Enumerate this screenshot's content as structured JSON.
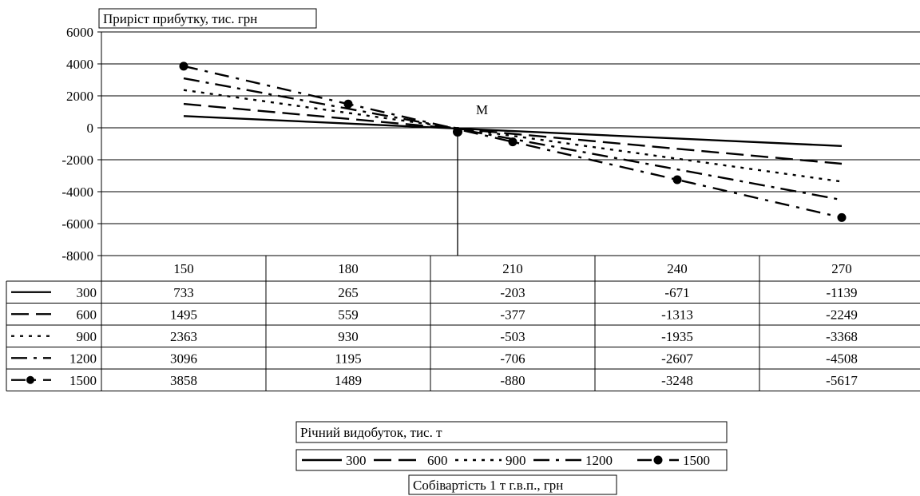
{
  "chart_data": {
    "type": "line",
    "ylabel": "Приріст прибутку, тис. грн",
    "xlabel": "Собівартість 1 т г.в.п., грн",
    "legend_title": "Річний видобуток, тис. т",
    "point_label": "М",
    "categories": [
      "150",
      "180",
      "210",
      "240",
      "270"
    ],
    "ylim": [
      -8000,
      6000
    ],
    "yticks": [
      6000,
      4000,
      2000,
      0,
      -2000,
      -4000,
      -6000,
      -8000
    ],
    "grid": true,
    "legend_position": "bottom",
    "series": [
      {
        "name": "300",
        "dash": "solid",
        "values": [
          733,
          265,
          -203,
          -671,
          -1139
        ]
      },
      {
        "name": "600",
        "dash": "long-dash",
        "values": [
          1495,
          559,
          -377,
          -1313,
          -2249
        ]
      },
      {
        "name": "900",
        "dash": "dot",
        "values": [
          2363,
          930,
          -503,
          -1935,
          -3368
        ]
      },
      {
        "name": "1200",
        "dash": "dash-dot",
        "values": [
          3096,
          1195,
          -706,
          -2607,
          -4508
        ]
      },
      {
        "name": "1500",
        "dash": "solid-marker",
        "values": [
          3858,
          1489,
          -880,
          -3248,
          -5617
        ]
      }
    ]
  }
}
